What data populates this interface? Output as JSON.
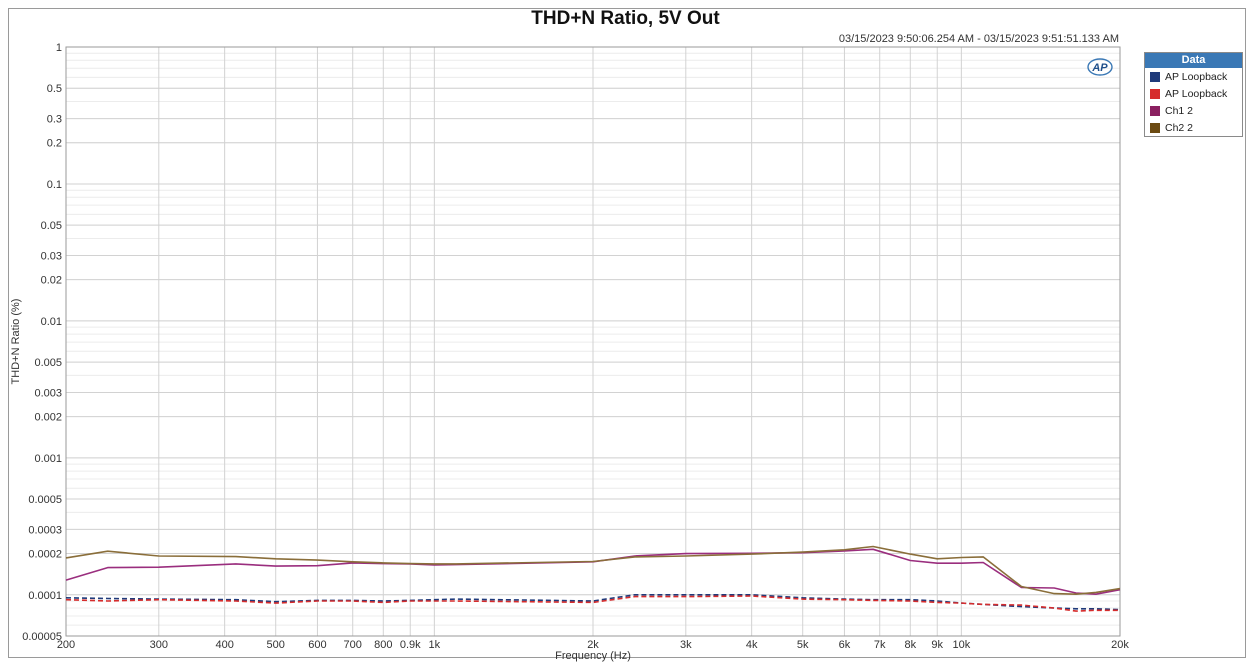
{
  "chart_data": {
    "type": "line",
    "title": "THD+N Ratio, 5V Out",
    "subtitle": "03/15/2023 9:50:06.254 AM - 03/15/2023 9:51:51.133 AM",
    "xlabel": "Frequency (Hz)",
    "ylabel": "THD+N Ratio (%)",
    "x_scale": "log",
    "y_scale": "log",
    "xlim": [
      200,
      20000
    ],
    "ylim": [
      5e-05,
      1
    ],
    "grid": true,
    "legend_title": "Data",
    "legend_position": "right",
    "x_ticks": [
      {
        "value": 200,
        "label": "200"
      },
      {
        "value": 300,
        "label": "300"
      },
      {
        "value": 400,
        "label": "400"
      },
      {
        "value": 500,
        "label": "500"
      },
      {
        "value": 600,
        "label": "600"
      },
      {
        "value": 700,
        "label": "700"
      },
      {
        "value": 800,
        "label": "800"
      },
      {
        "value": 900,
        "label": "0.9k"
      },
      {
        "value": 1000,
        "label": "1k"
      },
      {
        "value": 2000,
        "label": "2k"
      },
      {
        "value": 3000,
        "label": "3k"
      },
      {
        "value": 4000,
        "label": "4k"
      },
      {
        "value": 5000,
        "label": "5k"
      },
      {
        "value": 6000,
        "label": "6k"
      },
      {
        "value": 7000,
        "label": "7k"
      },
      {
        "value": 8000,
        "label": "8k"
      },
      {
        "value": 9000,
        "label": "9k"
      },
      {
        "value": 10000,
        "label": "10k"
      },
      {
        "value": 20000,
        "label": "20k"
      }
    ],
    "y_ticks": [
      {
        "value": 1,
        "label": "1"
      },
      {
        "value": 0.5,
        "label": "0.5"
      },
      {
        "value": 0.3,
        "label": "0.3"
      },
      {
        "value": 0.2,
        "label": "0.2"
      },
      {
        "value": 0.1,
        "label": "0.1"
      },
      {
        "value": 0.05,
        "label": "0.05"
      },
      {
        "value": 0.03,
        "label": "0.03"
      },
      {
        "value": 0.02,
        "label": "0.02"
      },
      {
        "value": 0.01,
        "label": "0.01"
      },
      {
        "value": 0.005,
        "label": "0.005"
      },
      {
        "value": 0.003,
        "label": "0.003"
      },
      {
        "value": 0.002,
        "label": "0.002"
      },
      {
        "value": 0.001,
        "label": "0.001"
      },
      {
        "value": 0.0005,
        "label": "0.0005"
      },
      {
        "value": 0.0003,
        "label": "0.0003"
      },
      {
        "value": 0.0002,
        "label": "0.0002"
      },
      {
        "value": 0.0001,
        "label": "0.0001"
      },
      {
        "value": 5e-05,
        "label": "0.00005"
      }
    ],
    "x": [
      200,
      240,
      300,
      420,
      500,
      600,
      700,
      800,
      900,
      1000,
      1100,
      2000,
      2400,
      3000,
      4000,
      5000,
      6000,
      6800,
      8000,
      9000,
      10000,
      11000,
      13000,
      15000,
      16500,
      18000,
      20000
    ],
    "series": [
      {
        "name": "AP Loopback",
        "color": "#1f3a7a",
        "dashed": true,
        "values": [
          9.5e-05,
          9.4e-05,
          9.3e-05,
          9.2e-05,
          8.9e-05,
          9.1e-05,
          9.1e-05,
          9e-05,
          9.1e-05,
          9.2e-05,
          9.3e-05,
          9e-05,
          0.0001,
          0.0001,
          0.0001,
          9.5e-05,
          9.3e-05,
          9.2e-05,
          9.2e-05,
          9e-05,
          8.7e-05,
          8.5e-05,
          8.2e-05,
          8e-05,
          7.9e-05,
          7.9e-05,
          7.8e-05
        ]
      },
      {
        "name": "AP Loopback",
        "color": "#d62c2c",
        "dashed": true,
        "values": [
          9.2e-05,
          9e-05,
          9.2e-05,
          9e-05,
          8.7e-05,
          9e-05,
          9e-05,
          8.8e-05,
          9e-05,
          9e-05,
          9e-05,
          8.8e-05,
          9.7e-05,
          9.7e-05,
          9.8e-05,
          9.3e-05,
          9.2e-05,
          9.1e-05,
          9e-05,
          8.8e-05,
          8.7e-05,
          8.5e-05,
          8.4e-05,
          8e-05,
          7.6e-05,
          7.7e-05,
          7.7e-05
        ]
      },
      {
        "name": "Ch1 2",
        "color": "#9a2e7e",
        "dashed": false,
        "values": [
          0.000128,
          0.000158,
          0.000159,
          0.000168,
          0.000162,
          0.000163,
          0.000171,
          0.000169,
          0.000168,
          0.000165,
          0.000166,
          0.000174,
          0.000192,
          0.0002,
          0.000201,
          0.000203,
          0.000209,
          0.000215,
          0.000178,
          0.00017,
          0.00017,
          0.000172,
          0.000113,
          0.000112,
          0.000103,
          0.000101,
          0.000109
        ]
      },
      {
        "name": "Ch2 2",
        "color": "#8a6e3a",
        "dashed": false,
        "values": [
          0.000186,
          0.000208,
          0.000192,
          0.00019,
          0.000183,
          0.000179,
          0.000174,
          0.000171,
          0.000169,
          0.000168,
          0.000168,
          0.000175,
          0.000189,
          0.000192,
          0.000198,
          0.000205,
          0.000213,
          0.000225,
          0.000198,
          0.000183,
          0.000187,
          0.000189,
          0.000115,
          0.000102,
          0.000101,
          0.000104,
          0.000111
        ]
      }
    ]
  },
  "legend_swatches": [
    "#1f3a7a",
    "#d62c2c",
    "#8a2060",
    "#6b4a12"
  ],
  "logo_text": "AP"
}
